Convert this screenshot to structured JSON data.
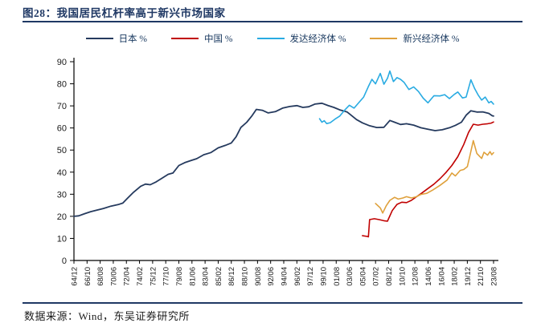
{
  "header": {
    "title": "图28：我国居民杠杆率高于新兴市场国家"
  },
  "footer": {
    "source": "数据来源：Wind，东吴证券研究所"
  },
  "colors": {
    "accent": "#1f3864",
    "axis": "#000000",
    "tick_label": "#1a1a1a",
    "japan": "#253a5e",
    "china": "#c00000",
    "developed": "#29abe2",
    "emerging": "#dfa13c"
  },
  "chart_data": {
    "type": "line",
    "title": "我国居民杠杆率高于新兴市场国家",
    "unit": "%",
    "xlabel": "",
    "ylabel": "",
    "ylim": [
      0,
      90
    ],
    "y_ticks": [
      0,
      10,
      20,
      30,
      40,
      50,
      60,
      70,
      80,
      90
    ],
    "grid": false,
    "legend_position": "top",
    "x_tick_labels": [
      "64/12",
      "66/10",
      "68/08",
      "70/06",
      "72/04",
      "74/02",
      "75/12",
      "77/10",
      "79/08",
      "81/06",
      "83/04",
      "85/02",
      "86/12",
      "88/10",
      "90/08",
      "92/06",
      "94/04",
      "96/02",
      "97/12",
      "99/10",
      "01/08",
      "03/06",
      "05/04",
      "07/02",
      "08/12",
      "10/10",
      "12/08",
      "14/06",
      "16/04",
      "18/02",
      "19/12",
      "21/10",
      "23/08"
    ],
    "series": [
      {
        "name": "日本 %",
        "color": "#253a5e",
        "points": [
          [
            "64/12",
            20.0
          ],
          [
            "65/08",
            20.2
          ],
          [
            "66/06",
            21.2
          ],
          [
            "67/04",
            22.1
          ],
          [
            "68/02",
            22.8
          ],
          [
            "69/02",
            23.6
          ],
          [
            "70/02",
            24.6
          ],
          [
            "71/02",
            25.3
          ],
          [
            "71/10",
            26.0
          ],
          [
            "72/06",
            28.2
          ],
          [
            "73/04",
            30.9
          ],
          [
            "74/04",
            33.6
          ],
          [
            "74/12",
            34.6
          ],
          [
            "75/08",
            34.3
          ],
          [
            "76/06",
            35.6
          ],
          [
            "77/04",
            37.3
          ],
          [
            "78/02",
            39.0
          ],
          [
            "78/10",
            39.6
          ],
          [
            "79/08",
            43.0
          ],
          [
            "80/06",
            44.3
          ],
          [
            "81/04",
            45.2
          ],
          [
            "82/02",
            46.1
          ],
          [
            "83/02",
            47.9
          ],
          [
            "84/02",
            48.9
          ],
          [
            "85/02",
            51.0
          ],
          [
            "86/02",
            52.1
          ],
          [
            "86/12",
            53.2
          ],
          [
            "87/08",
            56.0
          ],
          [
            "88/04",
            60.2
          ],
          [
            "89/02",
            62.6
          ],
          [
            "89/10",
            65.3
          ],
          [
            "90/06",
            68.4
          ],
          [
            "91/04",
            68.0
          ],
          [
            "92/02",
            66.8
          ],
          [
            "93/02",
            67.4
          ],
          [
            "94/02",
            69.0
          ],
          [
            "95/02",
            69.7
          ],
          [
            "96/02",
            70.1
          ],
          [
            "96/12",
            69.3
          ],
          [
            "97/10",
            69.6
          ],
          [
            "98/08",
            70.8
          ],
          [
            "99/08",
            71.2
          ],
          [
            "00/06",
            70.2
          ],
          [
            "01/04",
            69.3
          ],
          [
            "02/02",
            68.2
          ],
          [
            "03/02",
            67.3
          ],
          [
            "03/08",
            66.0
          ],
          [
            "04/06",
            63.8
          ],
          [
            "05/04",
            62.3
          ],
          [
            "06/04",
            61.0
          ],
          [
            "07/04",
            60.2
          ],
          [
            "08/04",
            60.3
          ],
          [
            "09/02",
            63.4
          ],
          [
            "09/10",
            62.6
          ],
          [
            "10/08",
            61.6
          ],
          [
            "11/06",
            61.9
          ],
          [
            "12/06",
            61.3
          ],
          [
            "13/06",
            60.1
          ],
          [
            "14/06",
            59.4
          ],
          [
            "15/06",
            58.8
          ],
          [
            "16/06",
            59.2
          ],
          [
            "17/06",
            60.1
          ],
          [
            "18/04",
            61.2
          ],
          [
            "19/02",
            62.6
          ],
          [
            "19/10",
            65.8
          ],
          [
            "20/06",
            67.8
          ],
          [
            "21/04",
            67.2
          ],
          [
            "22/02",
            67.3
          ],
          [
            "22/12",
            66.6
          ],
          [
            "23/06",
            65.5
          ],
          [
            "23/08",
            65.4
          ]
        ]
      },
      {
        "name": "中国 %",
        "color": "#c00000",
        "points": [
          [
            "05/04",
            11.2
          ],
          [
            "05/12",
            10.9
          ],
          [
            "06/02",
            10.7
          ],
          [
            "06/04",
            18.5
          ],
          [
            "06/12",
            18.9
          ],
          [
            "07/08",
            18.5
          ],
          [
            "08/04",
            18.0
          ],
          [
            "08/10",
            17.8
          ],
          [
            "09/06",
            22.6
          ],
          [
            "10/02",
            25.4
          ],
          [
            "10/10",
            26.4
          ],
          [
            "11/06",
            26.2
          ],
          [
            "12/02",
            27.2
          ],
          [
            "12/10",
            28.7
          ],
          [
            "13/08",
            30.6
          ],
          [
            "14/06",
            32.6
          ],
          [
            "15/04",
            34.6
          ],
          [
            "16/02",
            37.0
          ],
          [
            "16/12",
            39.8
          ],
          [
            "17/10",
            43.0
          ],
          [
            "18/08",
            47.0
          ],
          [
            "19/06",
            52.5
          ],
          [
            "20/02",
            58.0
          ],
          [
            "20/10",
            61.7
          ],
          [
            "21/06",
            61.3
          ],
          [
            "22/02",
            61.7
          ],
          [
            "22/10",
            61.9
          ],
          [
            "23/04",
            62.2
          ],
          [
            "23/08",
            62.7
          ]
        ]
      },
      {
        "name": "发达经济体 %",
        "color": "#29abe2",
        "points": [
          [
            "99/04",
            64.2
          ],
          [
            "99/08",
            62.6
          ],
          [
            "99/12",
            63.3
          ],
          [
            "00/04",
            62.0
          ],
          [
            "00/10",
            62.4
          ],
          [
            "01/06",
            64.0
          ],
          [
            "02/02",
            65.4
          ],
          [
            "02/10",
            68.0
          ],
          [
            "03/06",
            70.3
          ],
          [
            "04/02",
            69.0
          ],
          [
            "04/10",
            71.5
          ],
          [
            "05/06",
            74.0
          ],
          [
            "06/02",
            78.8
          ],
          [
            "06/08",
            82.0
          ],
          [
            "07/02",
            80.0
          ],
          [
            "07/10",
            84.7
          ],
          [
            "08/04",
            79.8
          ],
          [
            "08/10",
            82.5
          ],
          [
            "09/02",
            85.8
          ],
          [
            "09/08",
            81.0
          ],
          [
            "10/02",
            82.8
          ],
          [
            "10/08",
            82.0
          ],
          [
            "11/02",
            80.6
          ],
          [
            "11/10",
            77.4
          ],
          [
            "12/06",
            78.6
          ],
          [
            "13/02",
            76.5
          ],
          [
            "13/10",
            73.5
          ],
          [
            "14/06",
            71.4
          ],
          [
            "15/04",
            74.6
          ],
          [
            "16/02",
            74.5
          ],
          [
            "16/10",
            75.1
          ],
          [
            "17/06",
            73.3
          ],
          [
            "18/02",
            75.2
          ],
          [
            "18/08",
            76.3
          ],
          [
            "19/04",
            73.6
          ],
          [
            "19/10",
            74.0
          ],
          [
            "20/06",
            81.8
          ],
          [
            "20/12",
            78.0
          ],
          [
            "21/06",
            75.0
          ],
          [
            "21/12",
            72.6
          ],
          [
            "22/06",
            74.0
          ],
          [
            "22/12",
            71.4
          ],
          [
            "23/04",
            72.0
          ],
          [
            "23/08",
            70.8
          ]
        ]
      },
      {
        "name": "新兴经济体 %",
        "color": "#dfa13c",
        "points": [
          [
            "07/02",
            25.8
          ],
          [
            "07/10",
            23.8
          ],
          [
            "08/02",
            21.5
          ],
          [
            "08/08",
            24.8
          ],
          [
            "09/02",
            27.2
          ],
          [
            "09/10",
            28.6
          ],
          [
            "10/04",
            27.8
          ],
          [
            "10/12",
            28.3
          ],
          [
            "11/06",
            28.9
          ],
          [
            "12/02",
            28.3
          ],
          [
            "12/10",
            28.8
          ],
          [
            "13/06",
            29.9
          ],
          [
            "14/04",
            30.4
          ],
          [
            "15/02",
            31.9
          ],
          [
            "16/02",
            34.0
          ],
          [
            "17/02",
            36.4
          ],
          [
            "17/10",
            39.6
          ],
          [
            "18/04",
            38.3
          ],
          [
            "18/12",
            40.8
          ],
          [
            "19/06",
            41.2
          ],
          [
            "19/12",
            42.5
          ],
          [
            "20/04",
            47.0
          ],
          [
            "20/10",
            54.3
          ],
          [
            "21/04",
            48.5
          ],
          [
            "21/12",
            46.2
          ],
          [
            "22/04",
            49.0
          ],
          [
            "22/10",
            47.7
          ],
          [
            "23/02",
            49.3
          ],
          [
            "23/05",
            47.9
          ],
          [
            "23/08",
            48.8
          ]
        ]
      }
    ]
  }
}
